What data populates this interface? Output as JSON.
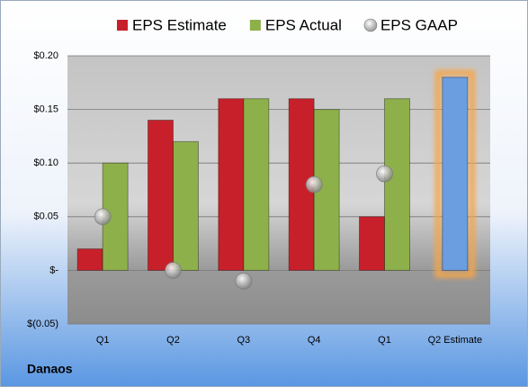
{
  "chart_data": {
    "type": "bar",
    "categories": [
      "Q1",
      "Q2",
      "Q3",
      "Q4",
      "Q1",
      "Q2 Estimate"
    ],
    "series": [
      {
        "name": "EPS Estimate",
        "color": "#c8202a",
        "values": [
          0.02,
          0.14,
          0.16,
          0.16,
          0.05,
          null
        ]
      },
      {
        "name": "EPS Actual",
        "color": "#8db04a",
        "values": [
          0.1,
          0.12,
          0.16,
          0.15,
          0.16,
          null
        ]
      },
      {
        "name": "EPS GAAP",
        "color": "#a0a0a0",
        "marker": "circle",
        "values": [
          0.05,
          0.0,
          -0.01,
          0.08,
          0.09,
          null
        ]
      },
      {
        "color": "#6a9ee0",
        "highlight": "#f5a64a",
        "values": [
          null,
          null,
          null,
          null,
          null,
          0.18
        ]
      }
    ],
    "ylim": [
      -0.05,
      0.2
    ],
    "yticks": [
      {
        "value": -0.05,
        "label": "$(0.05)"
      },
      {
        "value": 0,
        "label": "$-"
      },
      {
        "value": 0.05,
        "label": "$0.05"
      },
      {
        "value": 0.1,
        "label": "$0.10"
      },
      {
        "value": 0.15,
        "label": "$0.15"
      },
      {
        "value": 0.2,
        "label": "$0.20"
      }
    ],
    "grid": true,
    "legend": "top",
    "footer": "Danaos"
  }
}
